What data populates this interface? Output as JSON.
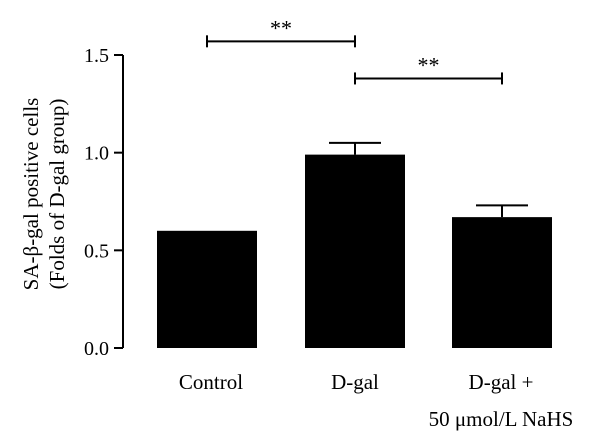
{
  "chart_data": {
    "type": "bar",
    "categories": [
      {
        "lines": [
          "Control"
        ]
      },
      {
        "lines": [
          "D-gal"
        ]
      },
      {
        "lines": [
          "D-gal +",
          "50 μmol/L NaHS"
        ]
      }
    ],
    "values": [
      0.6,
      0.99,
      0.67
    ],
    "errors": [
      0.0,
      0.06,
      0.06
    ],
    "ylabel_lines": [
      "SA-β-gal positive cells",
      "(Folds of D-gal group)"
    ],
    "ylim": [
      0,
      1.5
    ],
    "yticks": [
      0.0,
      0.5,
      1.0,
      1.5
    ],
    "ytick_labels": [
      "0.0",
      "0.5",
      "1.0",
      "1.5"
    ],
    "bar_color": "#000000",
    "significance": [
      {
        "from": 0,
        "to": 1,
        "label": "**",
        "y": 1.57
      },
      {
        "from": 1,
        "to": 2,
        "label": "**",
        "y": 1.38
      }
    ],
    "grid": false,
    "legend": "none"
  }
}
